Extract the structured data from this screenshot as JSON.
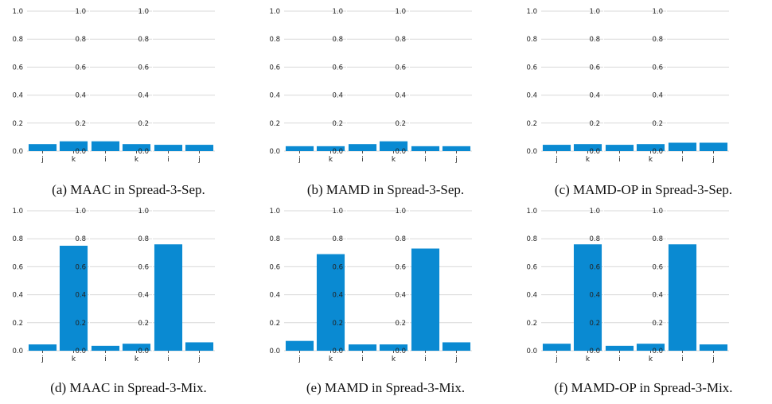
{
  "colors": {
    "bar": "#0a8ad2",
    "grid": "#d9d9d9",
    "text": "#222222"
  },
  "chart_data": [
    {
      "caption": "(a) MAAC in Spread-3-Sep.",
      "subplots": [
        {
          "type": "bar",
          "categories": [
            "j",
            "k"
          ],
          "values": [
            0.05,
            0.07
          ],
          "ylim": [
            0,
            1
          ],
          "yticks": [
            "0.0",
            "0.2",
            "0.4",
            "0.6",
            "0.8",
            "1.0"
          ]
        },
        {
          "type": "bar",
          "categories": [
            "i",
            "k"
          ],
          "values": [
            0.07,
            0.05
          ],
          "ylim": [
            0,
            1
          ],
          "yticks": [
            "0.0",
            "0.2",
            "0.4",
            "0.6",
            "0.8",
            "1.0"
          ]
        },
        {
          "type": "bar",
          "categories": [
            "i",
            "j"
          ],
          "values": [
            0.045,
            0.045
          ],
          "ylim": [
            0,
            1
          ],
          "yticks": [
            "0.0",
            "0.2",
            "0.4",
            "0.6",
            "0.8",
            "1.0"
          ]
        }
      ]
    },
    {
      "caption": "(b) MAMD in Spread-3-Sep.",
      "subplots": [
        {
          "type": "bar",
          "categories": [
            "j",
            "k"
          ],
          "values": [
            0.035,
            0.035
          ],
          "ylim": [
            0,
            1
          ],
          "yticks": [
            "0.0",
            "0.2",
            "0.4",
            "0.6",
            "0.8",
            "1.0"
          ]
        },
        {
          "type": "bar",
          "categories": [
            "i",
            "k"
          ],
          "values": [
            0.05,
            0.07
          ],
          "ylim": [
            0,
            1
          ],
          "yticks": [
            "0.0",
            "0.2",
            "0.4",
            "0.6",
            "0.8",
            "1.0"
          ]
        },
        {
          "type": "bar",
          "categories": [
            "i",
            "j"
          ],
          "values": [
            0.035,
            0.035
          ],
          "ylim": [
            0,
            1
          ],
          "yticks": [
            "0.0",
            "0.2",
            "0.4",
            "0.6",
            "0.8",
            "1.0"
          ]
        }
      ]
    },
    {
      "caption": "(c) MAMD-OP in Spread-3-Sep.",
      "subplots": [
        {
          "type": "bar",
          "categories": [
            "j",
            "k"
          ],
          "values": [
            0.045,
            0.05
          ],
          "ylim": [
            0,
            1
          ],
          "yticks": [
            "0.0",
            "0.2",
            "0.4",
            "0.6",
            "0.8",
            "1.0"
          ]
        },
        {
          "type": "bar",
          "categories": [
            "i",
            "k"
          ],
          "values": [
            0.045,
            0.05
          ],
          "ylim": [
            0,
            1
          ],
          "yticks": [
            "0.0",
            "0.2",
            "0.4",
            "0.6",
            "0.8",
            "1.0"
          ]
        },
        {
          "type": "bar",
          "categories": [
            "i",
            "j"
          ],
          "values": [
            0.06,
            0.06
          ],
          "ylim": [
            0,
            1
          ],
          "yticks": [
            "0.0",
            "0.2",
            "0.4",
            "0.6",
            "0.8",
            "1.0"
          ]
        }
      ]
    },
    {
      "caption": "(d) MAAC in Spread-3-Mix.",
      "subplots": [
        {
          "type": "bar",
          "categories": [
            "j",
            "k"
          ],
          "values": [
            0.045,
            0.75
          ],
          "ylim": [
            0,
            1
          ],
          "yticks": [
            "0.0",
            "0.2",
            "0.4",
            "0.6",
            "0.8",
            "1.0"
          ]
        },
        {
          "type": "bar",
          "categories": [
            "i",
            "k"
          ],
          "values": [
            0.035,
            0.05
          ],
          "ylim": [
            0,
            1
          ],
          "yticks": [
            "0.0",
            "0.2",
            "0.4",
            "0.6",
            "0.8",
            "1.0"
          ]
        },
        {
          "type": "bar",
          "categories": [
            "i",
            "j"
          ],
          "values": [
            0.76,
            0.06
          ],
          "ylim": [
            0,
            1
          ],
          "yticks": [
            "0.0",
            "0.2",
            "0.4",
            "0.6",
            "0.8",
            "1.0"
          ]
        }
      ]
    },
    {
      "caption": "(e) MAMD in Spread-3-Mix.",
      "subplots": [
        {
          "type": "bar",
          "categories": [
            "j",
            "k"
          ],
          "values": [
            0.07,
            0.69
          ],
          "ylim": [
            0,
            1
          ],
          "yticks": [
            "0.0",
            "0.2",
            "0.4",
            "0.6",
            "0.8",
            "1.0"
          ]
        },
        {
          "type": "bar",
          "categories": [
            "i",
            "k"
          ],
          "values": [
            0.045,
            0.045
          ],
          "ylim": [
            0,
            1
          ],
          "yticks": [
            "0.0",
            "0.2",
            "0.4",
            "0.6",
            "0.8",
            "1.0"
          ]
        },
        {
          "type": "bar",
          "categories": [
            "i",
            "j"
          ],
          "values": [
            0.73,
            0.06
          ],
          "ylim": [
            0,
            1
          ],
          "yticks": [
            "0.0",
            "0.2",
            "0.4",
            "0.6",
            "0.8",
            "1.0"
          ]
        }
      ]
    },
    {
      "caption": "(f) MAMD-OP in Spread-3-Mix.",
      "subplots": [
        {
          "type": "bar",
          "categories": [
            "j",
            "k"
          ],
          "values": [
            0.05,
            0.76
          ],
          "ylim": [
            0,
            1
          ],
          "yticks": [
            "0.0",
            "0.2",
            "0.4",
            "0.6",
            "0.8",
            "1.0"
          ]
        },
        {
          "type": "bar",
          "categories": [
            "i",
            "k"
          ],
          "values": [
            0.035,
            0.05
          ],
          "ylim": [
            0,
            1
          ],
          "yticks": [
            "0.0",
            "0.2",
            "0.4",
            "0.6",
            "0.8",
            "1.0"
          ]
        },
        {
          "type": "bar",
          "categories": [
            "i",
            "j"
          ],
          "values": [
            0.76,
            0.045
          ],
          "ylim": [
            0,
            1
          ],
          "yticks": [
            "0.0",
            "0.2",
            "0.4",
            "0.6",
            "0.8",
            "1.0"
          ]
        }
      ]
    }
  ]
}
